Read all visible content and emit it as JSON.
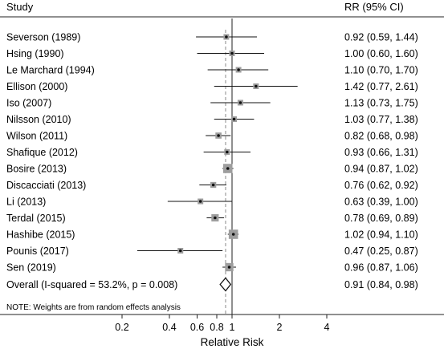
{
  "chart_data": {
    "type": "forest",
    "header_left": "Study",
    "header_right": "RR (95% CI)",
    "studies": [
      {
        "name": "Severson (1989)",
        "rr": 0.92,
        "lo": 0.59,
        "hi": 1.44,
        "ci_text": "0.92 (0.59, 1.44)"
      },
      {
        "name": "Hsing (1990)",
        "rr": 1.0,
        "lo": 0.6,
        "hi": 1.6,
        "ci_text": "1.00 (0.60, 1.60)"
      },
      {
        "name": "Le Marchard (1994)",
        "rr": 1.1,
        "lo": 0.7,
        "hi": 1.7,
        "ci_text": "1.10 (0.70, 1.70)"
      },
      {
        "name": "Ellison (2000)",
        "rr": 1.42,
        "lo": 0.77,
        "hi": 2.61,
        "ci_text": "1.42 (0.77, 2.61)"
      },
      {
        "name": "Iso (2007)",
        "rr": 1.13,
        "lo": 0.73,
        "hi": 1.75,
        "ci_text": "1.13 (0.73, 1.75)"
      },
      {
        "name": "Nilsson (2010)",
        "rr": 1.03,
        "lo": 0.77,
        "hi": 1.38,
        "ci_text": "1.03 (0.77, 1.38)"
      },
      {
        "name": "Wilson (2011)",
        "rr": 0.82,
        "lo": 0.68,
        "hi": 0.98,
        "ci_text": "0.82 (0.68, 0.98)"
      },
      {
        "name": "Shafique (2012)",
        "rr": 0.93,
        "lo": 0.66,
        "hi": 1.31,
        "ci_text": "0.93 (0.66, 1.31)"
      },
      {
        "name": "Bosire (2013)",
        "rr": 0.94,
        "lo": 0.87,
        "hi": 1.02,
        "ci_text": "0.94 (0.87, 1.02)"
      },
      {
        "name": "Discacciati (2013)",
        "rr": 0.76,
        "lo": 0.62,
        "hi": 0.92,
        "ci_text": "0.76 (0.62, 0.92)"
      },
      {
        "name": "Li (2013)",
        "rr": 0.63,
        "lo": 0.39,
        "hi": 1.0,
        "ci_text": "0.63 (0.39, 1.00)"
      },
      {
        "name": "Terdal (2015)",
        "rr": 0.78,
        "lo": 0.69,
        "hi": 0.89,
        "ci_text": "0.78 (0.69, 0.89)"
      },
      {
        "name": "Hashibe (2015)",
        "rr": 1.02,
        "lo": 0.94,
        "hi": 1.1,
        "ci_text": "1.02 (0.94, 1.10)"
      },
      {
        "name": "Pounis (2017)",
        "rr": 0.47,
        "lo": 0.25,
        "hi": 0.87,
        "ci_text": "0.47 (0.25, 0.87)"
      },
      {
        "name": "Sen (2019)",
        "rr": 0.96,
        "lo": 0.87,
        "hi": 1.06,
        "ci_text": "0.96 (0.87, 1.06)"
      }
    ],
    "overall": {
      "label": "Overall  (I-squared = 53.2%, p = 0.008)",
      "rr": 0.91,
      "lo": 0.84,
      "hi": 0.98,
      "ci_text": "0.91 (0.84, 0.98)"
    },
    "note": "NOTE: Weights are from random effects analysis",
    "xticks": [
      0.2,
      0.4,
      0.6,
      0.8,
      1,
      2,
      4
    ],
    "xtick_labels": [
      "0.2",
      "0.4",
      "0.6",
      "0.8",
      "1",
      "2",
      "4"
    ],
    "xlabel": "Relative Risk",
    "x_scale": "log",
    "x_range": [
      0.2,
      4
    ],
    "reference_line": 1,
    "colors": {
      "ci_line": "#111111",
      "weight_box": "#9e9e9e",
      "point": "#111111",
      "dashed_line": "#8a8a8a",
      "axis": "#222222"
    }
  }
}
